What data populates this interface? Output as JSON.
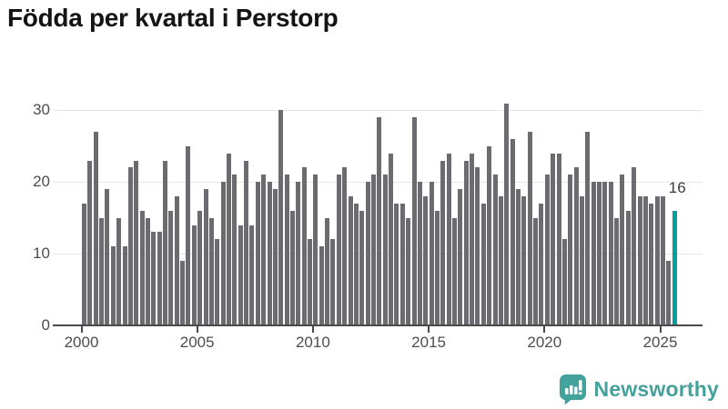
{
  "title": "Födda per kvartal i Perstorp",
  "chart_data": {
    "type": "bar",
    "title": "Födda per kvartal i Perstorp",
    "x_unit": "quarter",
    "x_start": "2000-K1",
    "x_end": "2025-K3",
    "x_tick_labels": [
      "2000",
      "2005",
      "2010",
      "2015",
      "2020",
      "2025"
    ],
    "y_ticks": [
      0,
      10,
      20,
      30
    ],
    "y_gridlines": [
      10,
      20,
      30
    ],
    "ylim": [
      0,
      32
    ],
    "grid": true,
    "legend": "none",
    "bar_color": "#6c6c70",
    "highlight_color": "#00a19a",
    "highlight_last": true,
    "highlight_value_label": "16",
    "values": [
      17,
      23,
      27,
      15,
      19,
      11,
      15,
      11,
      22,
      23,
      16,
      15,
      13,
      13,
      23,
      16,
      18,
      9,
      25,
      14,
      16,
      19,
      15,
      12,
      20,
      24,
      21,
      14,
      23,
      14,
      20,
      21,
      20,
      19,
      30,
      21,
      16,
      20,
      22,
      12,
      21,
      11,
      15,
      12,
      21,
      22,
      18,
      17,
      16,
      20,
      21,
      29,
      21,
      24,
      17,
      17,
      15,
      29,
      20,
      18,
      20,
      16,
      23,
      24,
      15,
      19,
      23,
      24,
      22,
      17,
      25,
      21,
      18,
      31,
      26,
      19,
      18,
      27,
      15,
      17,
      21,
      24,
      24,
      12,
      21,
      22,
      18,
      27,
      20,
      20,
      20,
      20,
      15,
      21,
      16,
      22,
      18,
      18,
      17,
      18,
      18,
      9,
      16
    ]
  },
  "branding": {
    "name": "Newsworthy",
    "icon": "newsworthy-chart-bubble-icon",
    "color": "#44a19b"
  }
}
